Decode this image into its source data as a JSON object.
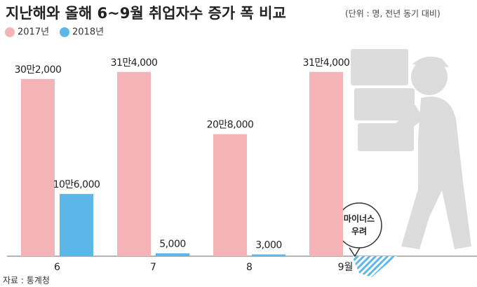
{
  "chart_data": {
    "type": "bar",
    "title": "지난해와 올해 6~9월 취업자수 증가 폭 비교",
    "subtitle": "(단위 : 명, 전년 동기 대비)",
    "categories": [
      "6",
      "7",
      "8",
      "9월"
    ],
    "series": [
      {
        "name": "2017년",
        "color": "#f4b3b6",
        "values": [
          302000,
          314000,
          208000,
          314000
        ],
        "value_labels": [
          "30만2,000",
          "31만4,000",
          "20만8,000",
          "31만4,000"
        ]
      },
      {
        "name": "2018년",
        "color": "#5cb7e8",
        "values": [
          106000,
          5000,
          3000,
          null
        ],
        "value_labels": [
          "10만6,000",
          "5,000",
          "3,000",
          null
        ]
      }
    ],
    "ylim": [
      0,
      340000
    ],
    "annotation": [
      "마이너스",
      "우려"
    ],
    "source": "자료 : 통계청"
  }
}
